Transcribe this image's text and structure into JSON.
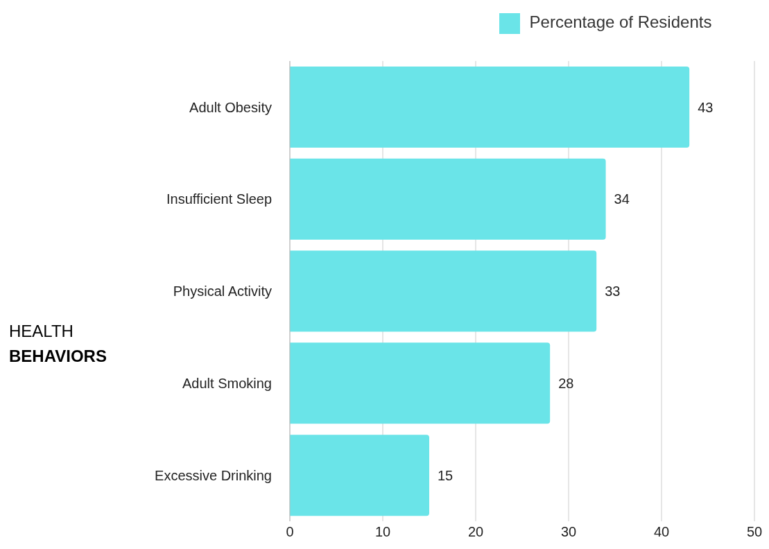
{
  "chart_data": {
    "type": "bar",
    "orientation": "horizontal",
    "title": "HEALTH BEHAVIORS",
    "categories": [
      "Adult Obesity",
      "Insufficient Sleep",
      "Physical Activity",
      "Adult Smoking",
      "Excessive Drinking"
    ],
    "series": [
      {
        "name": "Percentage of Residents",
        "color": "#6ae4e8",
        "values": [
          43,
          34,
          33,
          28,
          15
        ]
      }
    ],
    "xlim": [
      0,
      50
    ],
    "xticks": [
      0,
      10,
      20,
      30,
      40,
      50
    ],
    "grid": "x",
    "legend": "top",
    "data_labels": true
  }
}
